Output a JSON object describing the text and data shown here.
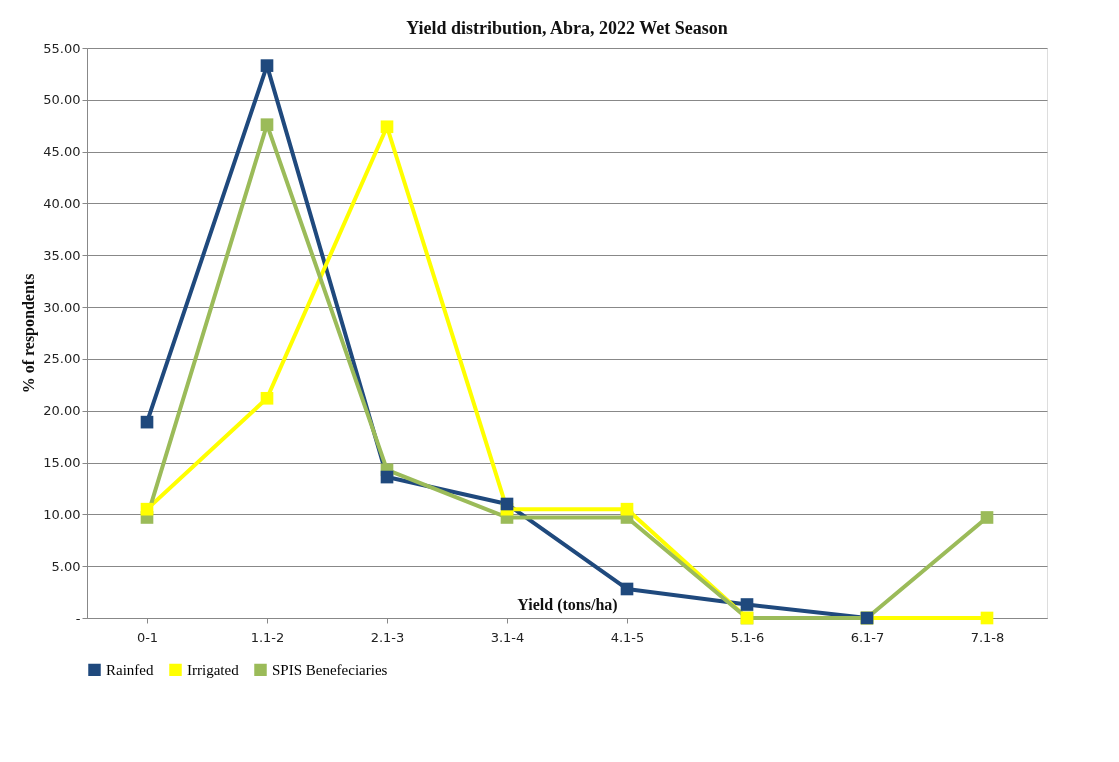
{
  "chart_data": {
    "type": "line",
    "title": "Yield distribution,  Abra, 2022 Wet Season",
    "xlabel": "Yield (tons/ha)",
    "ylabel": "% of respondents",
    "categories": [
      "0-1",
      "1.1-2",
      "2.1-3",
      "3.1-4",
      "4.1-5",
      "5.1-6",
      "6.1-7",
      "7.1-8"
    ],
    "series": [
      {
        "name": "Rainfed",
        "color": "#1f497d",
        "values": [
          18.9,
          53.3,
          13.6,
          11.0,
          2.8,
          1.3,
          0,
          null
        ]
      },
      {
        "name": "Irrigated",
        "color": "#ffff00",
        "values": [
          10.5,
          21.2,
          47.4,
          10.5,
          10.5,
          0,
          0,
          0
        ]
      },
      {
        "name": "SPIS Benefeciaries",
        "color": "#9bbb59",
        "values": [
          9.7,
          47.6,
          14.3,
          9.7,
          9.7,
          0,
          0,
          9.7
        ]
      }
    ],
    "ylim": [
      0,
      55
    ],
    "yticks": [
      {
        "value": 0,
        "label": "-"
      },
      {
        "value": 5,
        "label": "5.00"
      },
      {
        "value": 10,
        "label": "10.00"
      },
      {
        "value": 15,
        "label": "15.00"
      },
      {
        "value": 20,
        "label": "20.00"
      },
      {
        "value": 25,
        "label": "25.00"
      },
      {
        "value": 30,
        "label": "30.00"
      },
      {
        "value": 35,
        "label": "35.00"
      },
      {
        "value": 40,
        "label": "40.00"
      },
      {
        "value": 45,
        "label": "45.00"
      },
      {
        "value": 50,
        "label": "50.00"
      },
      {
        "value": 55,
        "label": "55.00"
      }
    ],
    "grid": "y",
    "legend": "bottom",
    "marker": "square",
    "line_style": "solid"
  }
}
